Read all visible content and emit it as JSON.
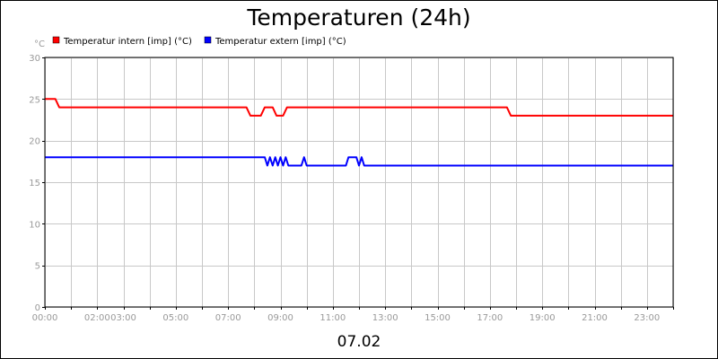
{
  "chart_data": {
    "type": "line",
    "title": "Temperaturen (24h)",
    "yunit": "°C",
    "xlabel": "07.02",
    "ylim": [
      0,
      30
    ],
    "xlim": [
      0,
      24
    ],
    "yticks": [
      0,
      5,
      10,
      15,
      20,
      25,
      30
    ],
    "xticks": [
      {
        "x": 0,
        "label": "00:00"
      },
      {
        "x": 2,
        "label": "02:00"
      },
      {
        "x": 3,
        "label": "03:00"
      },
      {
        "x": 5,
        "label": "05:00"
      },
      {
        "x": 7,
        "label": "07:00"
      },
      {
        "x": 9,
        "label": "09:00"
      },
      {
        "x": 11,
        "label": "11:00"
      },
      {
        "x": 13,
        "label": "13:00"
      },
      {
        "x": 15,
        "label": "15:00"
      },
      {
        "x": 17,
        "label": "17:00"
      },
      {
        "x": 19,
        "label": "19:00"
      },
      {
        "x": 21,
        "label": "21:00"
      },
      {
        "x": 23,
        "label": "23:00"
      }
    ],
    "xgrid": [
      0,
      1,
      2,
      3,
      4,
      5,
      6,
      7,
      8,
      9,
      10,
      11,
      12,
      13,
      14,
      15,
      16,
      17,
      18,
      19,
      20,
      21,
      22,
      23,
      24
    ],
    "grid": true,
    "legend_position": "top-left",
    "series": [
      {
        "name": "Temperatur intern [imp] (°C)",
        "color": "#ff0000",
        "x": [
          0,
          0.4,
          0.55,
          7.7,
          7.85,
          8.25,
          8.4,
          8.7,
          8.85,
          9.1,
          9.25,
          17.65,
          17.8,
          24
        ],
        "y": [
          25,
          25,
          24,
          24,
          23,
          23,
          24,
          24,
          23,
          23,
          24,
          24,
          23,
          23
        ]
      },
      {
        "name": "Temperatur extern [imp] (°C)",
        "color": "#0000ff",
        "x": [
          0,
          8.4,
          8.5,
          8.6,
          8.7,
          8.8,
          8.9,
          9.0,
          9.1,
          9.2,
          9.3,
          9.8,
          9.9,
          10.0,
          11.5,
          11.6,
          11.9,
          12.0,
          12.1,
          12.2,
          24
        ],
        "y": [
          18,
          18,
          17,
          18,
          17,
          18,
          17,
          18,
          17,
          18,
          17,
          17,
          18,
          17,
          17,
          18,
          18,
          17,
          18,
          17,
          17
        ]
      }
    ]
  }
}
